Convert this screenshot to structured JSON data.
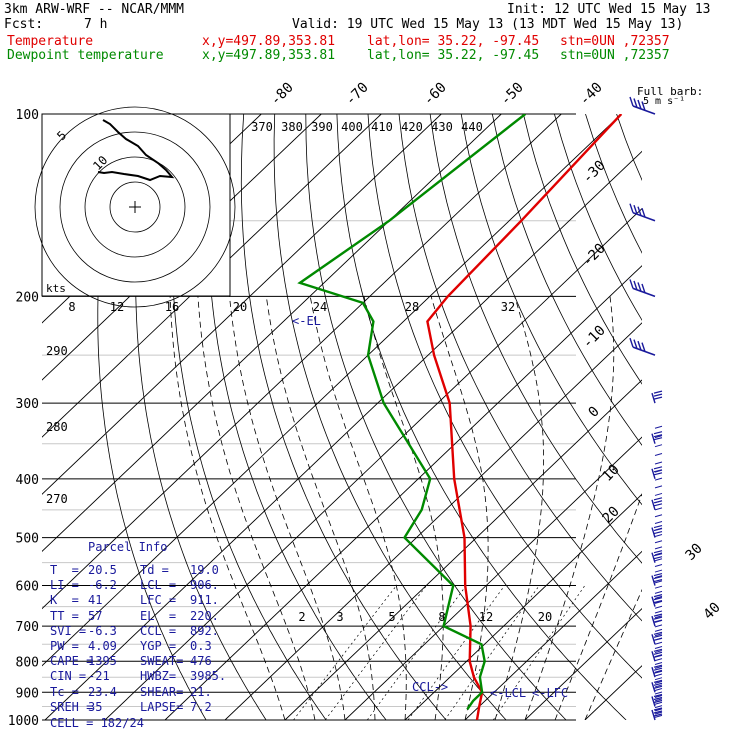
{
  "header": {
    "model": "3km ARW-WRF -- NCAR/MMM",
    "init": "Init: 12 UTC Wed 15 May 13",
    "fcst_label": "Fcst:",
    "fcst_hours": "7 h",
    "valid": "Valid: 19 UTC Wed 15 May 13 (13 MDT Wed 15 May 13)",
    "temp_label": "Temperature",
    "dew_label": "Dewpoint temperature",
    "xy": "x,y=497.89,353.81",
    "latlon": "lat,lon= 35.22, -97.45",
    "stn": "stn=0UN ,72357"
  },
  "colors": {
    "temperature": "#e00000",
    "dewpoint": "#008a00",
    "wind": "#1a1a9c",
    "text": "#1a1a9c"
  },
  "chart_data": {
    "type": "line",
    "subtype": "skew-T log-P",
    "pressure_levels_hPa": [
      "100",
      "200",
      "300",
      "400",
      "500",
      "600",
      "700",
      "800",
      "900",
      "1000"
    ],
    "isotherm_labels_C": [
      "-80",
      "-70",
      "-60",
      "-50",
      "-40",
      "-30",
      "-20",
      "-10",
      "0",
      "10",
      "20",
      "30",
      "40"
    ],
    "theta_labels_K": [
      "370",
      "380",
      "390",
      "400",
      "410",
      "420",
      "430",
      "440",
      "290",
      "280",
      "270"
    ],
    "hodograph_speed_label": "kts",
    "hodograph_speed_ticks": [
      "8",
      "12",
      "16",
      "20",
      "24",
      "28",
      "32"
    ],
    "hodograph_rings": [
      "5",
      "10"
    ],
    "mixing_ratio_labels": [
      "2",
      "3",
      "5",
      "8",
      "12",
      "20"
    ],
    "barb_legend": [
      "Full barb:",
      "5 m s⁻¹"
    ],
    "level_markers": [
      "<-EL",
      "CCL->",
      "<-LCL",
      "<-LFC"
    ],
    "series": [
      {
        "name": "Temperature",
        "color": "#e00000",
        "points": [
          [
            1000,
            22
          ],
          [
            950,
            20
          ],
          [
            900,
            18
          ],
          [
            850,
            14
          ],
          [
            800,
            10.5
          ],
          [
            700,
            4.5
          ],
          [
            600,
            -3.5
          ],
          [
            500,
            -12
          ],
          [
            400,
            -24
          ],
          [
            300,
            -38
          ],
          [
            250,
            -49
          ],
          [
            220,
            -56
          ],
          [
            200,
            -57
          ],
          [
            150,
            -58
          ],
          [
            100,
            -60
          ]
        ]
      },
      {
        "name": "Dewpoint temperature",
        "color": "#008a00",
        "points": [
          [
            960,
            18.5
          ],
          [
            930,
            18
          ],
          [
            900,
            18
          ],
          [
            850,
            15
          ],
          [
            800,
            13
          ],
          [
            750,
            9.5
          ],
          [
            700,
            0
          ],
          [
            600,
            -5.5
          ],
          [
            500,
            -22
          ],
          [
            450,
            -24
          ],
          [
            400,
            -28
          ],
          [
            300,
            -49
          ],
          [
            250,
            -60
          ],
          [
            220,
            -65
          ],
          [
            205,
            -70
          ],
          [
            190,
            -84
          ],
          [
            150,
            -80
          ],
          [
            100,
            -76
          ]
        ]
      }
    ],
    "wind_profile_levels_hPa": [
      "1000",
      "950",
      "900",
      "850",
      "800",
      "750",
      "700",
      "650",
      "600",
      "550",
      "500",
      "450",
      "400",
      "350",
      "300",
      "250",
      "200",
      "150",
      "100"
    ],
    "parcel_info": {
      "title": "Parcel Info",
      "rows": [
        [
          "T  =",
          "20.5",
          "Td =",
          "19.0"
        ],
        [
          "LI =",
          "-6.2",
          "LCL =",
          "906."
        ],
        [
          "K  =",
          "41",
          "LFC =",
          "911."
        ],
        [
          "TT =",
          "57",
          "EL  =",
          "220."
        ],
        [
          "SVI =",
          "-6.3",
          "CCL =",
          "892."
        ],
        [
          "PW =",
          "4.09",
          "YGP =",
          "0.3"
        ],
        [
          "CAPE =",
          "1395",
          "SWEAT=",
          "476"
        ],
        [
          "CIN =",
          "-21",
          "HWBZ=",
          "3985."
        ],
        [
          "Tc =",
          "23.4",
          "SHEAR=",
          "21."
        ],
        [
          "SREH =",
          "35",
          "LAPSE=",
          "7.2"
        ]
      ],
      "cell": "CELL = 182/24"
    }
  }
}
